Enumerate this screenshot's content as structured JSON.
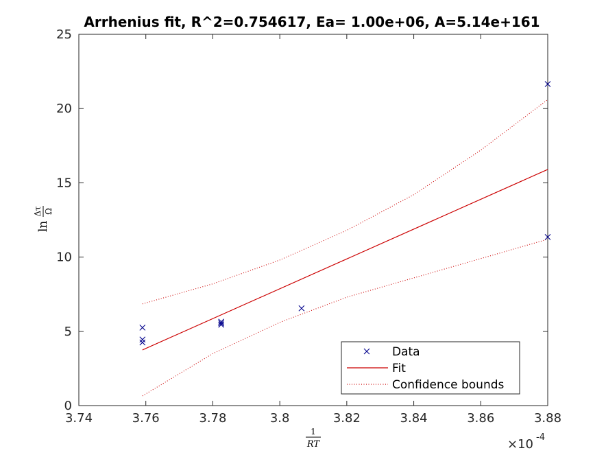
{
  "chart_data": {
    "type": "scatter",
    "title": "Arrhenius fit, R^2=0.754617, Ea= 1.00e+06, A=5.14e+161",
    "xlabel": "1/RT",
    "ylabel": "ln Δτ/Ω",
    "xlim": [
      0.000374,
      0.000388
    ],
    "ylim": [
      0,
      25
    ],
    "x_exponent_label": "×10",
    "x_exponent_power": "-4",
    "xticks": [
      0.000374,
      0.000376,
      0.000378,
      0.00038,
      0.000382,
      0.000384,
      0.000386,
      0.000388
    ],
    "xtick_labels": [
      "3.74",
      "3.76",
      "3.78",
      "3.8",
      "3.82",
      "3.84",
      "3.86",
      "3.88"
    ],
    "yticks": [
      0,
      5,
      10,
      15,
      20,
      25
    ],
    "ytick_labels": [
      "0",
      "5",
      "10",
      "15",
      "20",
      "25"
    ],
    "grid": false,
    "legend_position": "bottom-right",
    "series": [
      {
        "name": "Data",
        "kind": "marker",
        "marker": "x",
        "color": "#00008B",
        "points": [
          {
            "x": 0.0003759,
            "y": 5.25
          },
          {
            "x": 0.0003759,
            "y": 4.45
          },
          {
            "x": 0.0003759,
            "y": 4.25
          },
          {
            "x": 0.00037825,
            "y": 5.65
          },
          {
            "x": 0.00037825,
            "y": 5.55
          },
          {
            "x": 0.00037825,
            "y": 5.45
          },
          {
            "x": 0.00038065,
            "y": 6.55
          },
          {
            "x": 0.000388,
            "y": 21.65
          },
          {
            "x": 0.000388,
            "y": 11.35
          }
        ]
      },
      {
        "name": "Fit",
        "kind": "line",
        "color": "#CC0000",
        "points": [
          {
            "x": 0.0003759,
            "y": 3.75
          },
          {
            "x": 0.000388,
            "y": 15.9
          }
        ]
      },
      {
        "name": "Confidence bounds",
        "kind": "dotted",
        "color": "#CC0000",
        "upper": [
          {
            "x": 0.0003759,
            "y": 6.85
          },
          {
            "x": 0.000378,
            "y": 8.2
          },
          {
            "x": 0.00038,
            "y": 9.8
          },
          {
            "x": 0.000382,
            "y": 11.8
          },
          {
            "x": 0.000384,
            "y": 14.2
          },
          {
            "x": 0.000386,
            "y": 17.2
          },
          {
            "x": 0.000388,
            "y": 20.6
          }
        ],
        "lower": [
          {
            "x": 0.0003759,
            "y": 0.65
          },
          {
            "x": 0.000378,
            "y": 3.5
          },
          {
            "x": 0.00038,
            "y": 5.6
          },
          {
            "x": 0.000382,
            "y": 7.3
          },
          {
            "x": 0.000384,
            "y": 8.6
          },
          {
            "x": 0.000386,
            "y": 9.9
          },
          {
            "x": 0.000388,
            "y": 11.2
          }
        ]
      }
    ]
  }
}
